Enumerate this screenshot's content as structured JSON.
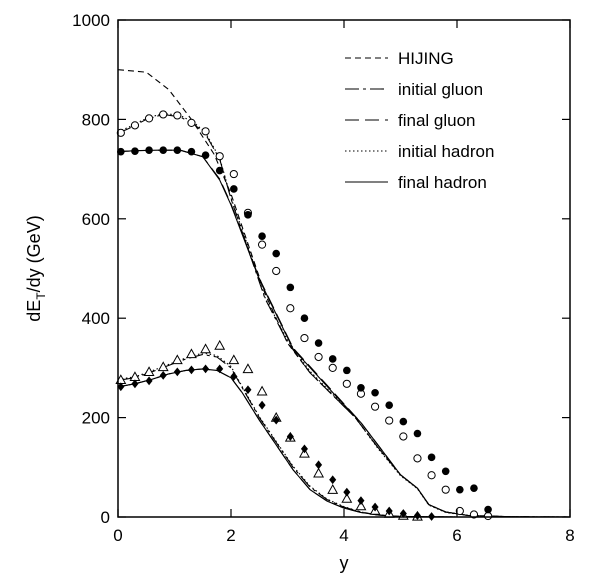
{
  "chart_data": {
    "type": "line",
    "xlabel": "y",
    "ylabel_main": "dE",
    "ylabel_sub": "T",
    "ylabel_tail": "/dy (GeV)",
    "xlim": [
      0,
      8
    ],
    "ylim": [
      0,
      1000
    ],
    "x_ticks": [
      0,
      2,
      4,
      6,
      8
    ],
    "x_tick_labels": [
      "0",
      "2",
      "4",
      "6",
      "8"
    ],
    "y_ticks": [
      0,
      200,
      400,
      600,
      800,
      1000
    ],
    "y_tick_labels": [
      "0",
      "200",
      "400",
      "600",
      "800",
      "1000"
    ],
    "grid": false,
    "legend_position": "top-right",
    "legend": [
      {
        "label": "HIJING",
        "dash": "6,4"
      },
      {
        "label": "initial gluon",
        "dash": "14,4,3,4"
      },
      {
        "label": "final gluon",
        "dash": "14,6"
      },
      {
        "label": "initial hadron",
        "dash": "1.5,2.5"
      },
      {
        "label": "final hadron",
        "dash": ""
      }
    ],
    "lines": [
      {
        "name": "HIJING",
        "dash": "6,4",
        "points": [
          [
            0,
            900
          ],
          [
            0.2,
            898
          ],
          [
            0.5,
            895
          ],
          [
            0.9,
            860
          ],
          [
            1.3,
            800
          ],
          [
            1.7,
            730
          ],
          [
            2.0,
            650
          ],
          [
            2.3,
            550
          ],
          [
            2.6,
            450
          ],
          [
            3.0,
            350
          ],
          [
            3.4,
            290
          ],
          [
            3.8,
            245
          ],
          [
            4.2,
            200
          ],
          [
            4.6,
            140
          ],
          [
            5.0,
            85
          ],
          [
            5.3,
            58
          ],
          [
            5.5,
            25
          ],
          [
            5.8,
            10
          ],
          [
            6.2,
            3
          ],
          [
            7.0,
            0.5
          ],
          [
            8.0,
            0
          ]
        ]
      },
      {
        "name": "initial gluon (upper)",
        "dash": "14,4,3,4",
        "points": [
          [
            0,
            772
          ],
          [
            0.2,
            782
          ],
          [
            0.5,
            800
          ],
          [
            0.8,
            810
          ],
          [
            1.1,
            805
          ],
          [
            1.35,
            790
          ],
          [
            1.55,
            770
          ],
          [
            1.8,
            720
          ],
          [
            2.0,
            640
          ],
          [
            2.3,
            540
          ],
          [
            2.6,
            440
          ],
          [
            3.0,
            352
          ],
          [
            3.4,
            290
          ],
          [
            3.8,
            245
          ],
          [
            4.2,
            200
          ],
          [
            4.6,
            140
          ],
          [
            5.0,
            85
          ],
          [
            5.3,
            58
          ],
          [
            5.5,
            25
          ],
          [
            5.8,
            10
          ],
          [
            6.2,
            3
          ],
          [
            7.0,
            0.5
          ],
          [
            8.0,
            0
          ]
        ]
      },
      {
        "name": "final gluon (upper)",
        "dash": "14,6",
        "points": [
          [
            0,
            735
          ],
          [
            0.3,
            737
          ],
          [
            0.7,
            738
          ],
          [
            1.1,
            738
          ],
          [
            1.5,
            725
          ],
          [
            1.8,
            680
          ],
          [
            2.0,
            630
          ],
          [
            2.2,
            570
          ],
          [
            2.5,
            480
          ],
          [
            2.8,
            410
          ],
          [
            3.1,
            340
          ],
          [
            3.5,
            290
          ],
          [
            3.9,
            240
          ],
          [
            4.3,
            190
          ],
          [
            4.7,
            130
          ],
          [
            5.0,
            85
          ],
          [
            5.3,
            58
          ],
          [
            5.5,
            25
          ],
          [
            5.8,
            10
          ],
          [
            6.2,
            3
          ],
          [
            7.0,
            0.5
          ],
          [
            8.0,
            0
          ]
        ]
      },
      {
        "name": "initial hadron (upper)",
        "dash": "1.5,2.5",
        "points": [
          [
            0,
            775
          ],
          [
            0.2,
            785
          ],
          [
            0.5,
            802
          ],
          [
            0.8,
            812
          ],
          [
            1.1,
            808
          ],
          [
            1.35,
            793
          ],
          [
            1.55,
            773
          ],
          [
            1.8,
            722
          ],
          [
            2.0,
            642
          ],
          [
            2.3,
            545
          ],
          [
            2.6,
            442
          ],
          [
            3.0,
            356
          ],
          [
            3.4,
            293
          ],
          [
            3.8,
            247
          ],
          [
            4.2,
            200
          ],
          [
            4.6,
            138
          ],
          [
            5.0,
            83
          ],
          [
            5.3,
            57
          ],
          [
            5.5,
            24
          ],
          [
            5.8,
            9
          ],
          [
            6.2,
            3
          ],
          [
            7.0,
            0.5
          ],
          [
            8.0,
            0
          ]
        ]
      },
      {
        "name": "final hadron (upper)",
        "dash": "",
        "points": [
          [
            0,
            735
          ],
          [
            0.3,
            737
          ],
          [
            0.7,
            738
          ],
          [
            1.1,
            738
          ],
          [
            1.5,
            725
          ],
          [
            1.8,
            678
          ],
          [
            2.0,
            628
          ],
          [
            2.2,
            568
          ],
          [
            2.5,
            478
          ],
          [
            2.8,
            408
          ],
          [
            3.1,
            338
          ],
          [
            3.5,
            288
          ],
          [
            3.9,
            238
          ],
          [
            4.3,
            190
          ],
          [
            4.7,
            130
          ],
          [
            5.0,
            85
          ],
          [
            5.3,
            58
          ],
          [
            5.5,
            25
          ],
          [
            5.8,
            10
          ],
          [
            6.2,
            3
          ],
          [
            7.0,
            0.5
          ],
          [
            8.0,
            0
          ]
        ]
      },
      {
        "name": "initial gluon (lower)",
        "dash": "14,4,3,4",
        "points": [
          [
            0,
            275
          ],
          [
            0.3,
            280
          ],
          [
            0.6,
            292
          ],
          [
            0.9,
            305
          ],
          [
            1.2,
            318
          ],
          [
            1.5,
            327
          ],
          [
            1.75,
            322
          ],
          [
            2.0,
            300
          ],
          [
            2.2,
            260
          ],
          [
            2.5,
            200
          ],
          [
            2.8,
            150
          ],
          [
            3.1,
            100
          ],
          [
            3.4,
            60
          ],
          [
            3.7,
            35
          ],
          [
            4.0,
            20
          ],
          [
            4.3,
            10
          ],
          [
            4.6,
            4
          ],
          [
            5.0,
            1
          ],
          [
            6.0,
            0
          ]
        ]
      },
      {
        "name": "final gluon (lower)",
        "dash": "14,6",
        "points": [
          [
            0,
            262
          ],
          [
            0.3,
            268
          ],
          [
            0.6,
            277
          ],
          [
            0.9,
            288
          ],
          [
            1.2,
            295
          ],
          [
            1.5,
            298
          ],
          [
            1.75,
            295
          ],
          [
            2.0,
            280
          ],
          [
            2.2,
            250
          ],
          [
            2.5,
            195
          ],
          [
            2.8,
            145
          ],
          [
            3.1,
            95
          ],
          [
            3.4,
            55
          ],
          [
            3.7,
            32
          ],
          [
            4.0,
            18
          ],
          [
            4.3,
            9
          ],
          [
            4.6,
            4
          ],
          [
            5.0,
            1
          ],
          [
            6.0,
            0
          ]
        ]
      },
      {
        "name": "initial hadron (lower)",
        "dash": "1.5,2.5",
        "points": [
          [
            0,
            277
          ],
          [
            0.3,
            282
          ],
          [
            0.6,
            294
          ],
          [
            0.9,
            307
          ],
          [
            1.2,
            320
          ],
          [
            1.5,
            330
          ],
          [
            1.75,
            325
          ],
          [
            2.0,
            303
          ],
          [
            2.2,
            262
          ],
          [
            2.5,
            202
          ],
          [
            2.8,
            152
          ],
          [
            3.1,
            102
          ],
          [
            3.4,
            62
          ],
          [
            3.7,
            36
          ],
          [
            4.0,
            21
          ],
          [
            4.3,
            10
          ],
          [
            4.6,
            4
          ],
          [
            5.0,
            1
          ],
          [
            6.0,
            0
          ]
        ]
      },
      {
        "name": "final hadron (lower)",
        "dash": "",
        "points": [
          [
            0,
            262
          ],
          [
            0.3,
            268
          ],
          [
            0.6,
            277
          ],
          [
            0.9,
            288
          ],
          [
            1.2,
            295
          ],
          [
            1.5,
            298
          ],
          [
            1.75,
            295
          ],
          [
            2.0,
            280
          ],
          [
            2.2,
            250
          ],
          [
            2.5,
            195
          ],
          [
            2.8,
            145
          ],
          [
            3.1,
            95
          ],
          [
            3.4,
            55
          ],
          [
            3.7,
            32
          ],
          [
            4.0,
            18
          ],
          [
            4.3,
            9
          ],
          [
            4.6,
            4
          ],
          [
            5.0,
            1
          ],
          [
            6.0,
            0
          ]
        ]
      }
    ],
    "markers": [
      {
        "symbol": "open-circle",
        "points": [
          [
            0.05,
            773
          ],
          [
            0.3,
            788
          ],
          [
            0.55,
            802
          ],
          [
            0.8,
            810
          ],
          [
            1.05,
            808
          ],
          [
            1.3,
            793
          ],
          [
            1.55,
            776
          ],
          [
            1.8,
            726
          ],
          [
            2.05,
            690
          ],
          [
            2.3,
            612
          ],
          [
            2.55,
            548
          ],
          [
            2.8,
            495
          ],
          [
            3.05,
            420
          ],
          [
            3.3,
            360
          ],
          [
            3.55,
            322
          ],
          [
            3.8,
            300
          ],
          [
            4.05,
            268
          ],
          [
            4.3,
            248
          ],
          [
            4.55,
            222
          ],
          [
            4.8,
            194
          ],
          [
            5.05,
            162
          ],
          [
            5.3,
            118
          ],
          [
            5.55,
            84
          ],
          [
            5.8,
            55
          ],
          [
            6.05,
            12
          ],
          [
            6.3,
            5
          ]
        ]
      },
      {
        "name": "upper open circles trailing",
        "symbol": "open-circle",
        "points": [
          [
            6.55,
            2
          ]
        ]
      },
      {
        "symbol": "filled-circle",
        "points": [
          [
            0.05,
            735
          ],
          [
            0.3,
            736
          ],
          [
            0.55,
            738
          ],
          [
            0.8,
            738
          ],
          [
            1.05,
            738
          ],
          [
            1.3,
            735
          ],
          [
            1.55,
            728
          ],
          [
            1.8,
            697
          ],
          [
            2.05,
            660
          ],
          [
            2.3,
            608
          ],
          [
            2.55,
            565
          ],
          [
            2.8,
            530
          ],
          [
            3.05,
            462
          ],
          [
            3.3,
            400
          ],
          [
            3.55,
            350
          ],
          [
            3.8,
            318
          ],
          [
            4.05,
            295
          ],
          [
            4.3,
            260
          ],
          [
            4.55,
            250
          ],
          [
            4.8,
            225
          ],
          [
            5.05,
            192
          ],
          [
            5.3,
            168
          ],
          [
            5.55,
            120
          ],
          [
            5.8,
            92
          ],
          [
            6.05,
            55
          ],
          [
            6.3,
            58
          ],
          [
            6.55,
            15
          ]
        ]
      },
      {
        "symbol": "open-triangle",
        "points": [
          [
            0.05,
            276
          ],
          [
            0.3,
            282
          ],
          [
            0.55,
            292
          ],
          [
            0.8,
            302
          ],
          [
            1.05,
            316
          ],
          [
            1.3,
            328
          ],
          [
            1.55,
            338
          ],
          [
            1.8,
            345
          ],
          [
            2.05,
            316
          ],
          [
            2.3,
            298
          ],
          [
            2.55,
            253
          ],
          [
            2.8,
            200
          ],
          [
            3.05,
            160
          ],
          [
            3.3,
            128
          ],
          [
            3.55,
            88
          ],
          [
            3.8,
            55
          ],
          [
            4.05,
            37
          ],
          [
            4.3,
            22
          ],
          [
            4.55,
            13
          ],
          [
            4.8,
            7
          ],
          [
            5.05,
            3
          ],
          [
            5.3,
            1
          ]
        ]
      },
      {
        "symbol": "filled-diamond",
        "points": [
          [
            0.05,
            262
          ],
          [
            0.3,
            268
          ],
          [
            0.55,
            274
          ],
          [
            0.8,
            285
          ],
          [
            1.05,
            292
          ],
          [
            1.3,
            296
          ],
          [
            1.55,
            298
          ],
          [
            1.8,
            298
          ],
          [
            2.05,
            283
          ],
          [
            2.3,
            256
          ],
          [
            2.55,
            225
          ],
          [
            2.8,
            195
          ],
          [
            3.05,
            162
          ],
          [
            3.3,
            137
          ],
          [
            3.55,
            105
          ],
          [
            3.8,
            75
          ],
          [
            4.05,
            50
          ],
          [
            4.3,
            33
          ],
          [
            4.55,
            20
          ],
          [
            4.8,
            12
          ],
          [
            5.05,
            7
          ],
          [
            5.3,
            3
          ],
          [
            5.55,
            1
          ]
        ]
      }
    ]
  }
}
